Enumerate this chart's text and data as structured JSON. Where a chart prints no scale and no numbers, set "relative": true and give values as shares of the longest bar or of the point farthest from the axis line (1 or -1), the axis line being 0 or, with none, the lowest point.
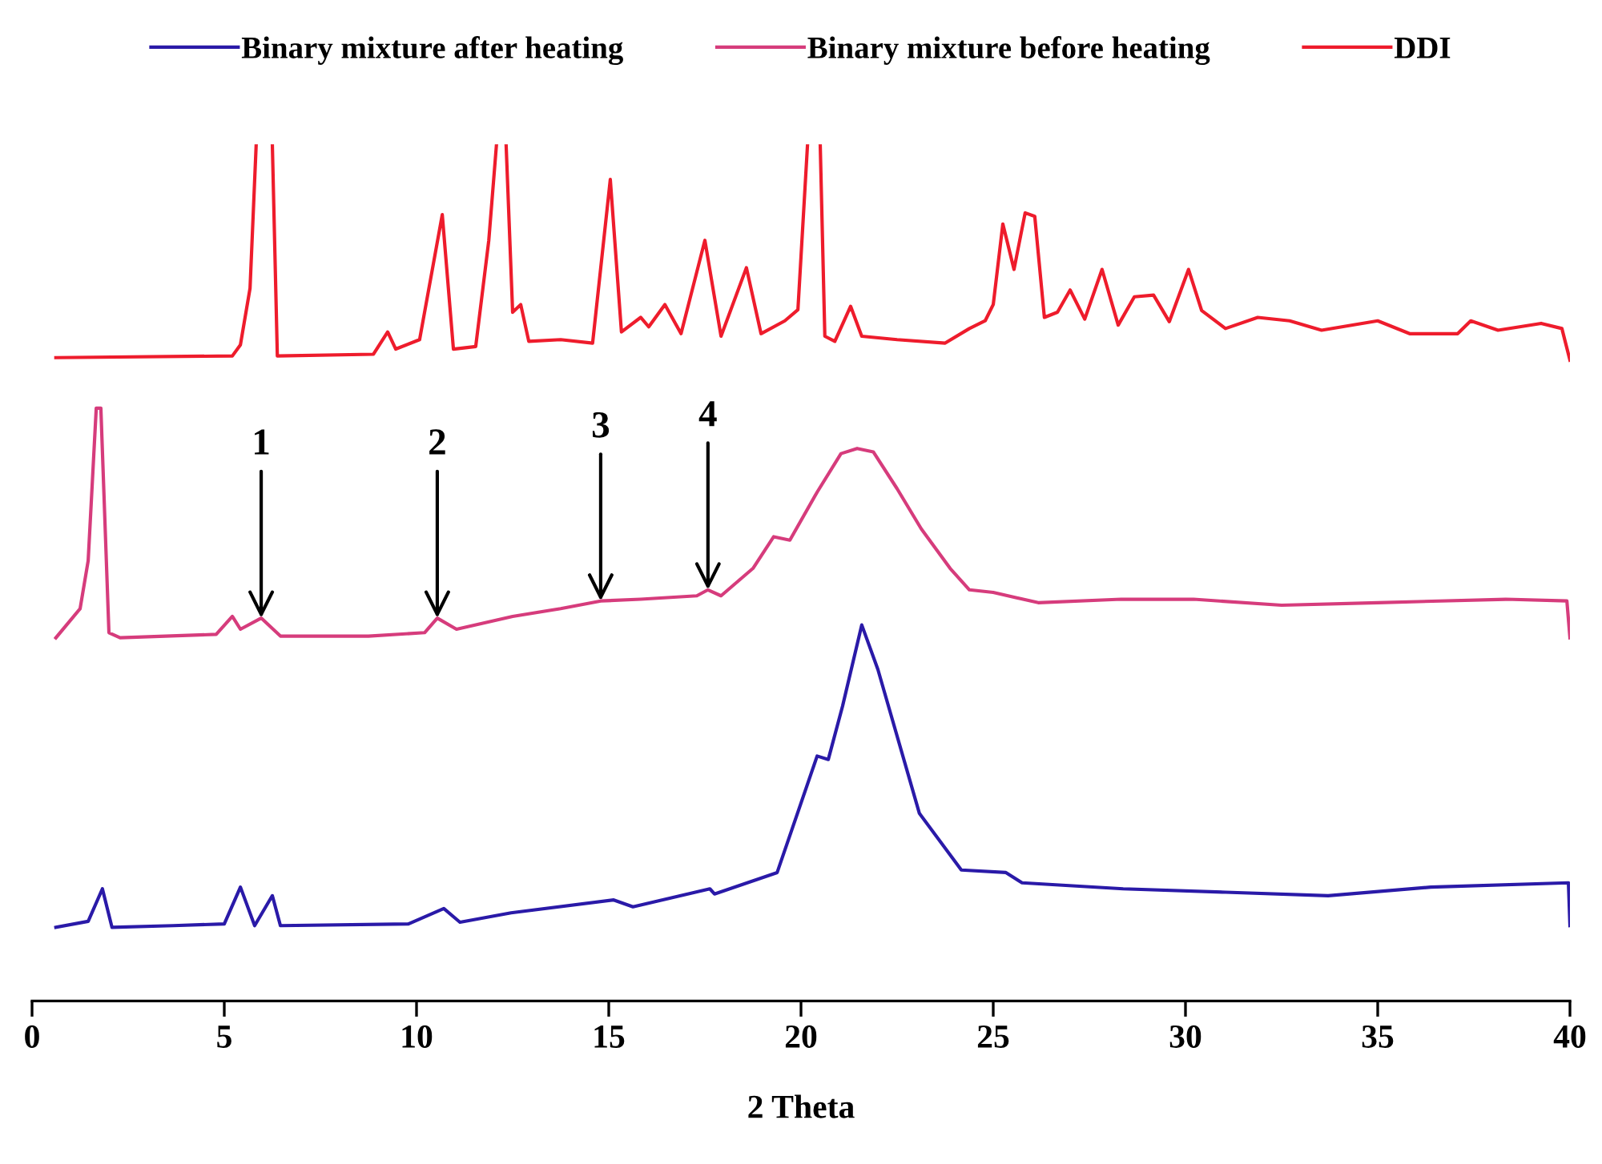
{
  "chart_data": {
    "type": "line",
    "xlabel": "2 Theta",
    "relative": true,
    "legend": "top",
    "grid": false,
    "marker": "none",
    "line_style": "solid",
    "tick_labels": "x",
    "xlim": [
      0,
      40
    ],
    "xticks": [
      0,
      5,
      10,
      15,
      20,
      25,
      30,
      35,
      40
    ],
    "series": [
      {
        "name": "Binary mixture after heating",
        "color": "#2a1aa8",
        "x": [
          0.62,
          1.46,
          1.83,
          2.08,
          3.67,
          5.0,
          5.42,
          5.79,
          6.25,
          6.46,
          9.79,
          10.71,
          11.13,
          12.46,
          15.13,
          15.63,
          17.63,
          17.75,
          19.38,
          20.42,
          20.71,
          21.08,
          21.58,
          22.0,
          23.08,
          24.17,
          25.33,
          25.75,
          28.38,
          31.04,
          33.71,
          36.38,
          39.96,
          40.0
        ],
        "values": [
          0.086,
          0.093,
          0.131,
          0.086,
          0.088,
          0.09,
          0.133,
          0.088,
          0.123,
          0.088,
          0.09,
          0.108,
          0.092,
          0.103,
          0.118,
          0.11,
          0.131,
          0.125,
          0.15,
          0.286,
          0.282,
          0.344,
          0.439,
          0.387,
          0.219,
          0.153,
          0.15,
          0.138,
          0.131,
          0.127,
          0.123,
          0.133,
          0.138,
          0.088
        ]
      },
      {
        "name": "Binary mixture before heating",
        "color": "#d63c7c",
        "x": [
          0.62,
          1.25,
          1.46,
          1.67,
          1.79,
          2.0,
          2.29,
          4.79,
          5.21,
          5.42,
          5.96,
          6.46,
          8.75,
          10.21,
          10.54,
          11.04,
          12.5,
          13.75,
          14.79,
          15.83,
          17.29,
          17.58,
          17.92,
          18.75,
          19.29,
          19.71,
          20.42,
          21.04,
          21.46,
          21.88,
          22.5,
          23.13,
          23.88,
          24.38,
          25.0,
          26.17,
          28.33,
          30.21,
          32.5,
          35.0,
          38.33,
          39.92,
          40.0
        ],
        "values": [
          0.424,
          0.458,
          0.514,
          0.692,
          0.692,
          0.43,
          0.424,
          0.428,
          0.449,
          0.434,
          0.447,
          0.426,
          0.426,
          0.43,
          0.447,
          0.434,
          0.449,
          0.458,
          0.467,
          0.469,
          0.473,
          0.48,
          0.473,
          0.505,
          0.542,
          0.538,
          0.594,
          0.639,
          0.645,
          0.641,
          0.598,
          0.551,
          0.505,
          0.48,
          0.477,
          0.465,
          0.469,
          0.469,
          0.462,
          0.465,
          0.469,
          0.467,
          0.424
        ]
      },
      {
        "name": "DDI",
        "color": "#ee1c2c",
        "x": [
          0.62,
          5.21,
          5.42,
          5.67,
          5.83,
          6.0,
          6.25,
          6.38,
          8.88,
          9.25,
          9.46,
          10.08,
          10.67,
          10.96,
          11.54,
          11.88,
          12.08,
          12.2,
          12.33,
          12.5,
          12.71,
          12.92,
          13.75,
          14.58,
          15.04,
          15.33,
          15.83,
          16.04,
          16.46,
          16.88,
          17.5,
          17.92,
          18.58,
          18.96,
          19.58,
          19.92,
          20.17,
          20.3,
          20.5,
          20.62,
          20.88,
          21.29,
          21.58,
          22.5,
          23.75,
          24.38,
          24.79,
          25.0,
          25.25,
          25.54,
          25.83,
          26.08,
          26.33,
          26.67,
          27.0,
          27.38,
          27.83,
          28.25,
          28.67,
          29.17,
          29.58,
          30.08,
          30.42,
          31.04,
          31.88,
          32.71,
          33.54,
          35.0,
          35.83,
          37.08,
          37.42,
          38.13,
          39.25,
          39.79,
          40.0
        ],
        "values": [
          0.751,
          0.753,
          0.766,
          0.832,
          1.0,
          null,
          1.0,
          0.753,
          0.755,
          0.781,
          0.761,
          0.772,
          0.918,
          0.761,
          0.764,
          0.888,
          1.0,
          null,
          1.0,
          0.804,
          0.813,
          0.77,
          0.772,
          0.768,
          0.959,
          0.781,
          0.798,
          0.787,
          0.813,
          0.779,
          0.888,
          0.776,
          0.856,
          0.779,
          0.794,
          0.807,
          1.0,
          null,
          1.0,
          0.776,
          0.77,
          0.811,
          0.776,
          0.772,
          0.768,
          0.785,
          0.794,
          0.813,
          0.907,
          0.854,
          0.92,
          0.916,
          0.798,
          0.804,
          0.83,
          0.796,
          0.854,
          0.789,
          0.822,
          0.824,
          0.793,
          0.854,
          0.806,
          0.785,
          0.798,
          0.794,
          0.783,
          0.794,
          0.779,
          0.779,
          0.794,
          0.783,
          0.791,
          0.785,
          0.748
        ]
      }
    ],
    "annotations": [
      {
        "text": "1",
        "x": 5.96,
        "y": 0.447
      },
      {
        "text": "2",
        "x": 10.54,
        "y": 0.447
      },
      {
        "text": "3",
        "x": 14.79,
        "y": 0.467
      },
      {
        "text": "4",
        "x": 17.58,
        "y": 0.48
      }
    ]
  }
}
